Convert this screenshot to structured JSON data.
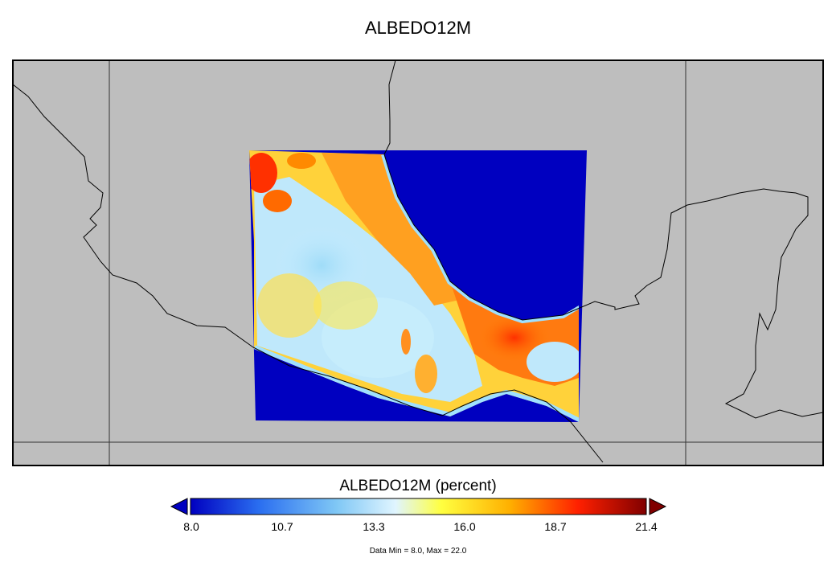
{
  "title": "ALBEDO12M",
  "colorbar": {
    "title": "ALBEDO12M (percent)",
    "ticks": [
      "8.0",
      "10.7",
      "13.3",
      "16.0",
      "18.7",
      "21.4"
    ],
    "colors": [
      "#0000c0",
      "#2a6ef0",
      "#7fc7f5",
      "#e0f5ff",
      "#ffff40",
      "#ffb000",
      "#ff4000",
      "#e00000",
      "#800000"
    ]
  },
  "stats": "Data Min = 8.0, Max = 22.0",
  "colors": {
    "land": "#bebebe",
    "water": "#0000c0",
    "outline": "#000000"
  }
}
